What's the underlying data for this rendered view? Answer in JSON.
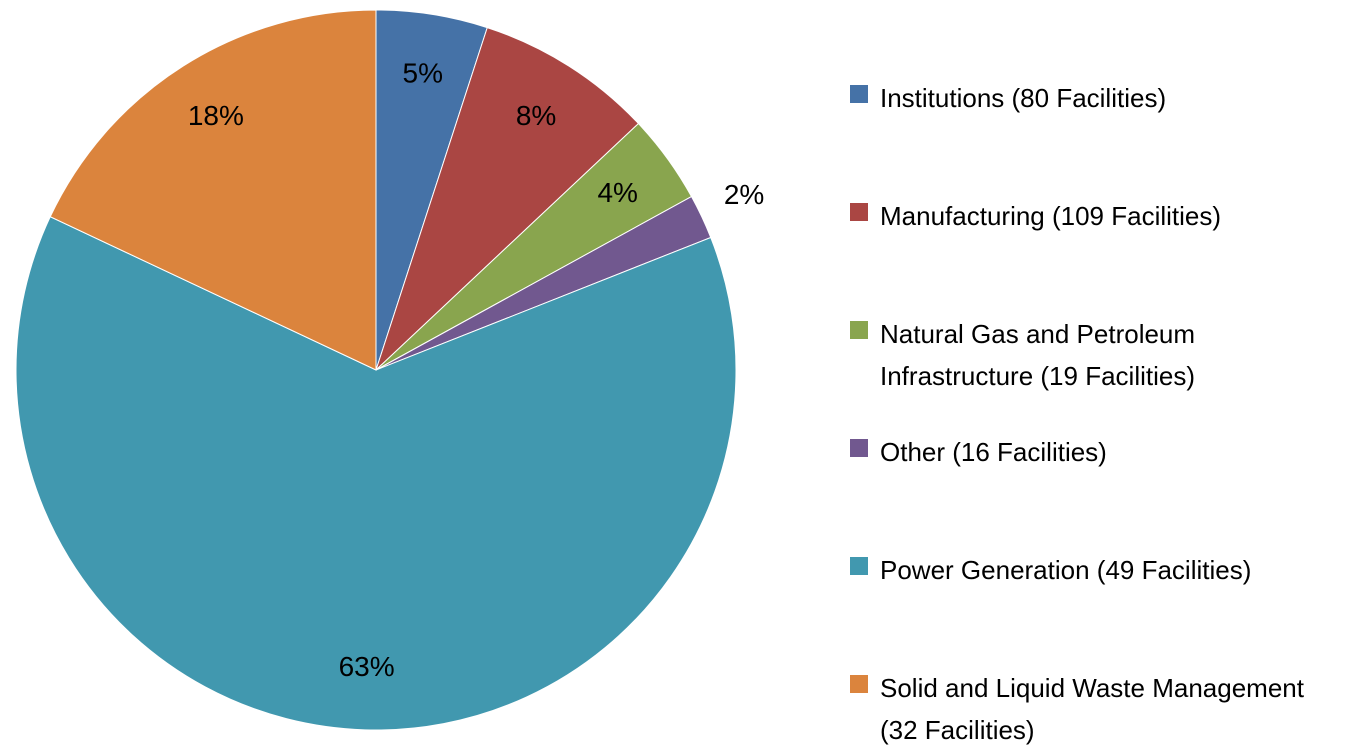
{
  "chart_data": {
    "type": "pie",
    "categories": [
      "Institutions (80 Facilities)",
      "Manufacturing (109 Facilities)",
      "Natural Gas and Petroleum Infrastructure (19 Facilities)",
      "Other (16 Facilities)",
      "Power Generation (49 Facilities)",
      "Solid and Liquid Waste Management (32 Facilities)"
    ],
    "values": [
      5,
      8,
      4,
      2,
      63,
      18
    ],
    "value_labels": [
      "5%",
      "8%",
      "4%",
      "2%",
      "63%",
      "18%"
    ],
    "colors": [
      "#4572a7",
      "#aa4643",
      "#89a54e",
      "#71588f",
      "#4198af",
      "#db843d"
    ],
    "legend": "right"
  }
}
